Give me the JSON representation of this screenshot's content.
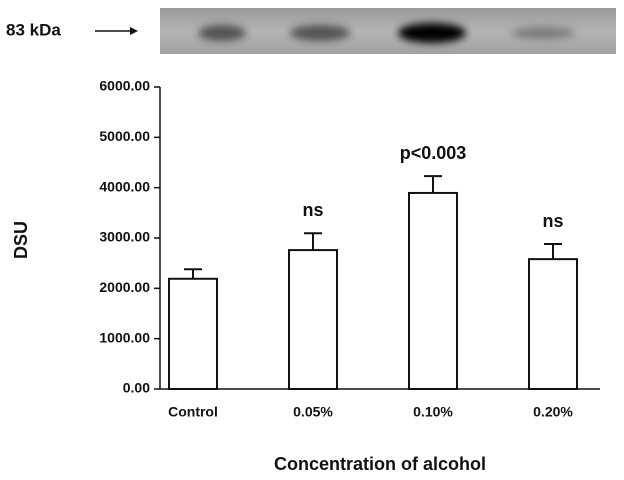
{
  "chart_data": {
    "type": "bar",
    "blot_label": "83 kDa",
    "categories": [
      "Control",
      "0.05%",
      "0.10%",
      "0.20%"
    ],
    "values": [
      2190,
      2760,
      3895,
      2580
    ],
    "errors": [
      190,
      335,
      335,
      300
    ],
    "annotations": [
      null,
      "ns",
      "p<0.003",
      "ns"
    ],
    "color": "#ffffff",
    "ylabel": "DSU",
    "xlabel": "Concentration of alcohol",
    "ylim": [
      0,
      6000
    ],
    "yticks": [
      {
        "value": 0,
        "label": "0.00"
      },
      {
        "value": 1000,
        "label": "1000.00"
      },
      {
        "value": 2000,
        "label": "2000.00"
      },
      {
        "value": 3000,
        "label": "3000.00"
      },
      {
        "value": 4000,
        "label": "4000.00"
      },
      {
        "value": 5000,
        "label": "5000.00"
      },
      {
        "value": 6000,
        "label": "6000.00"
      }
    ]
  }
}
